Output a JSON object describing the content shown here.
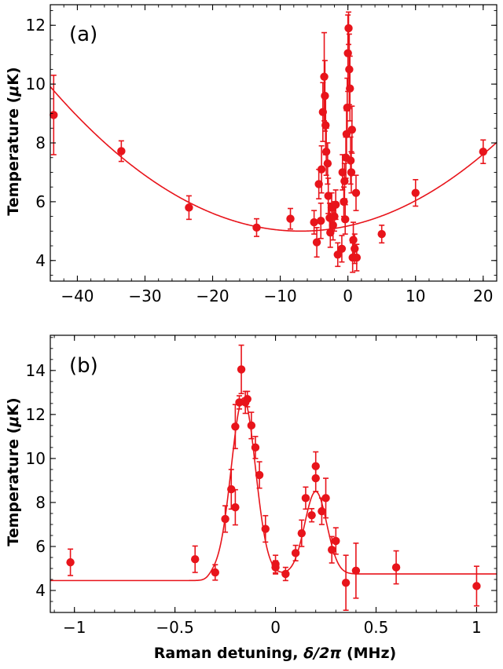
{
  "chart_data": [
    {
      "type": "scatter",
      "panel_label": "(a)",
      "title": "",
      "xlabel": "",
      "ylabel_text": "Temperature (",
      "ylabel_unit_greek": "μ",
      "ylabel_unit_rest": "K)",
      "xlim": [
        -44,
        22
      ],
      "ylim": [
        3.3,
        12.7
      ],
      "xticks": [
        -40,
        -30,
        -20,
        -10,
        0,
        10,
        20
      ],
      "xtick_labels": [
        "−40",
        "−30",
        "−20",
        "−10",
        "0",
        "10",
        "20"
      ],
      "yticks": [
        4,
        6,
        8,
        10,
        12
      ],
      "ytick_labels": [
        "4",
        "6",
        "8",
        "10",
        "12"
      ],
      "color": "#e8141b",
      "series": [
        {
          "name": "measured",
          "points": [
            {
              "x": -43.5,
              "y": 8.95,
              "err": 1.35
            },
            {
              "x": -33.5,
              "y": 7.72,
              "err": 0.35
            },
            {
              "x": -23.5,
              "y": 5.8,
              "err": 0.4
            },
            {
              "x": -13.5,
              "y": 5.12,
              "err": 0.3
            },
            {
              "x": -8.5,
              "y": 5.42,
              "err": 0.35
            },
            {
              "x": -5,
              "y": 5.3,
              "err": 0.4
            },
            {
              "x": -4.6,
              "y": 4.62,
              "err": 0.5
            },
            {
              "x": -4.3,
              "y": 6.6,
              "err": 0.5
            },
            {
              "x": -4.0,
              "y": 5.35,
              "err": 0.6
            },
            {
              "x": -3.9,
              "y": 7.1,
              "err": 0.8
            },
            {
              "x": -3.7,
              "y": 9.05,
              "err": 1.0
            },
            {
              "x": -3.5,
              "y": 10.25,
              "err": 1.5
            },
            {
              "x": -3.4,
              "y": 9.6,
              "err": 1.2
            },
            {
              "x": -3.3,
              "y": 8.6,
              "err": 1.0
            },
            {
              "x": -3.2,
              "y": 7.7,
              "err": 0.8
            },
            {
              "x": -3.0,
              "y": 7.3,
              "err": 0.7
            },
            {
              "x": -2.9,
              "y": 6.2,
              "err": 0.6
            },
            {
              "x": -2.7,
              "y": 5.45,
              "err": 0.5
            },
            {
              "x": -2.6,
              "y": 4.95,
              "err": 0.5
            },
            {
              "x": -2.4,
              "y": 5.8,
              "err": 0.5
            },
            {
              "x": -2.2,
              "y": 5.2,
              "err": 0.5
            },
            {
              "x": -2.0,
              "y": 5.5,
              "err": 0.5
            },
            {
              "x": -1.8,
              "y": 5.9,
              "err": 0.5
            },
            {
              "x": -1.5,
              "y": 4.2,
              "err": 0.4
            },
            {
              "x": -0.9,
              "y": 4.4,
              "err": 0.45
            },
            {
              "x": -0.8,
              "y": 7.0,
              "err": 0.6
            },
            {
              "x": -0.6,
              "y": 6.0,
              "err": 0.5
            },
            {
              "x": -0.5,
              "y": 6.7,
              "err": 0.6
            },
            {
              "x": -0.4,
              "y": 5.4,
              "err": 0.5
            },
            {
              "x": -0.3,
              "y": 7.5,
              "err": 0.7
            },
            {
              "x": -0.2,
              "y": 8.3,
              "err": 0.8
            },
            {
              "x": -0.1,
              "y": 9.2,
              "err": 1.0
            },
            {
              "x": 0.0,
              "y": 11.05,
              "err": 1.3
            },
            {
              "x": 0.1,
              "y": 11.9,
              "err": 0.55
            },
            {
              "x": 0.2,
              "y": 10.5,
              "err": 1.2
            },
            {
              "x": 0.3,
              "y": 9.85,
              "err": 1.1
            },
            {
              "x": 0.4,
              "y": 7.4,
              "err": 0.8
            },
            {
              "x": 0.5,
              "y": 7.0,
              "err": 0.7
            },
            {
              "x": 0.6,
              "y": 8.45,
              "err": 0.8
            },
            {
              "x": 0.7,
              "y": 4.1,
              "err": 0.5
            },
            {
              "x": 0.8,
              "y": 4.7,
              "err": 0.6
            },
            {
              "x": 1.0,
              "y": 4.4,
              "err": 0.5
            },
            {
              "x": 1.2,
              "y": 6.3,
              "err": 0.6
            },
            {
              "x": 1.3,
              "y": 4.1,
              "err": 0.45
            },
            {
              "x": 5.0,
              "y": 4.9,
              "err": 0.3
            },
            {
              "x": 10.0,
              "y": 6.3,
              "err": 0.45
            },
            {
              "x": 20.0,
              "y": 7.7,
              "err": 0.4
            }
          ]
        },
        {
          "name": "fit",
          "model": "parabola",
          "vertex_x": -7,
          "vertex_y": 5.0,
          "curvature": 0.003587
        }
      ]
    },
    {
      "type": "scatter",
      "panel_label": "(b)",
      "title": "",
      "xlabel_text": "Raman detuning, ",
      "xlabel_greek": "δ/2π",
      "xlabel_unit": " (MHz)",
      "ylabel_text": "Temperature (",
      "ylabel_unit_greek": "μ",
      "ylabel_unit_rest": "K)",
      "xlim": [
        -1.12,
        1.1
      ],
      "ylim": [
        3.0,
        15.6
      ],
      "xticks": [
        -1,
        -0.5,
        0,
        0.5,
        1
      ],
      "xtick_labels": [
        "−1",
        "−0.5",
        "0",
        "0.5",
        "1"
      ],
      "yticks": [
        4,
        6,
        8,
        10,
        12,
        14
      ],
      "ytick_labels": [
        "4",
        "6",
        "8",
        "10",
        "12",
        "14"
      ],
      "color": "#e8141b",
      "series": [
        {
          "name": "measured",
          "points": [
            {
              "x": -1.02,
              "y": 5.28,
              "err": 0.6
            },
            {
              "x": -0.4,
              "y": 5.42,
              "err": 0.6
            },
            {
              "x": -0.3,
              "y": 4.82,
              "err": 0.35
            },
            {
              "x": -0.25,
              "y": 7.25,
              "err": 0.6
            },
            {
              "x": -0.22,
              "y": 8.6,
              "err": 0.9
            },
            {
              "x": -0.2,
              "y": 7.78,
              "err": 0.8
            },
            {
              "x": -0.2,
              "y": 11.45,
              "err": 1.0
            },
            {
              "x": -0.18,
              "y": 12.55,
              "err": 0.3
            },
            {
              "x": -0.17,
              "y": 14.05,
              "err": 1.1
            },
            {
              "x": -0.15,
              "y": 12.55,
              "err": 0.5
            },
            {
              "x": -0.14,
              "y": 12.7,
              "err": 0.35
            },
            {
              "x": -0.12,
              "y": 11.5,
              "err": 0.6
            },
            {
              "x": -0.1,
              "y": 10.5,
              "err": 0.5
            },
            {
              "x": -0.08,
              "y": 9.25,
              "err": 0.6
            },
            {
              "x": -0.05,
              "y": 6.8,
              "err": 0.6
            },
            {
              "x": 0.0,
              "y": 5.2,
              "err": 0.4
            },
            {
              "x": 0.0,
              "y": 5.05,
              "err": 0.3
            },
            {
              "x": 0.05,
              "y": 4.75,
              "err": 0.3
            },
            {
              "x": 0.1,
              "y": 5.7,
              "err": 0.35
            },
            {
              "x": 0.13,
              "y": 6.6,
              "err": 0.6
            },
            {
              "x": 0.15,
              "y": 8.2,
              "err": 0.5
            },
            {
              "x": 0.18,
              "y": 7.42,
              "err": 0.3
            },
            {
              "x": 0.2,
              "y": 9.65,
              "err": 0.65
            },
            {
              "x": 0.2,
              "y": 9.1,
              "err": 0.6
            },
            {
              "x": 0.23,
              "y": 7.6,
              "err": 0.6
            },
            {
              "x": 0.25,
              "y": 8.2,
              "err": 0.9
            },
            {
              "x": 0.28,
              "y": 5.85,
              "err": 0.6
            },
            {
              "x": 0.3,
              "y": 6.25,
              "err": 0.6
            },
            {
              "x": 0.35,
              "y": 4.35,
              "err": 1.25
            },
            {
              "x": 0.4,
              "y": 4.9,
              "err": 1.25
            },
            {
              "x": 0.6,
              "y": 5.05,
              "err": 0.75
            },
            {
              "x": 1.0,
              "y": 4.2,
              "err": 0.9
            }
          ]
        },
        {
          "name": "fit",
          "model": "double-gaussian-with-step",
          "baseline_left": 4.45,
          "baseline_right": 4.75,
          "step_center": -0.33,
          "peak1": {
            "center": -0.16,
            "amplitude": 8.0,
            "sigma": 0.06
          },
          "peak2": {
            "center": 0.2,
            "amplitude": 3.75,
            "sigma": 0.055
          }
        }
      ]
    }
  ]
}
